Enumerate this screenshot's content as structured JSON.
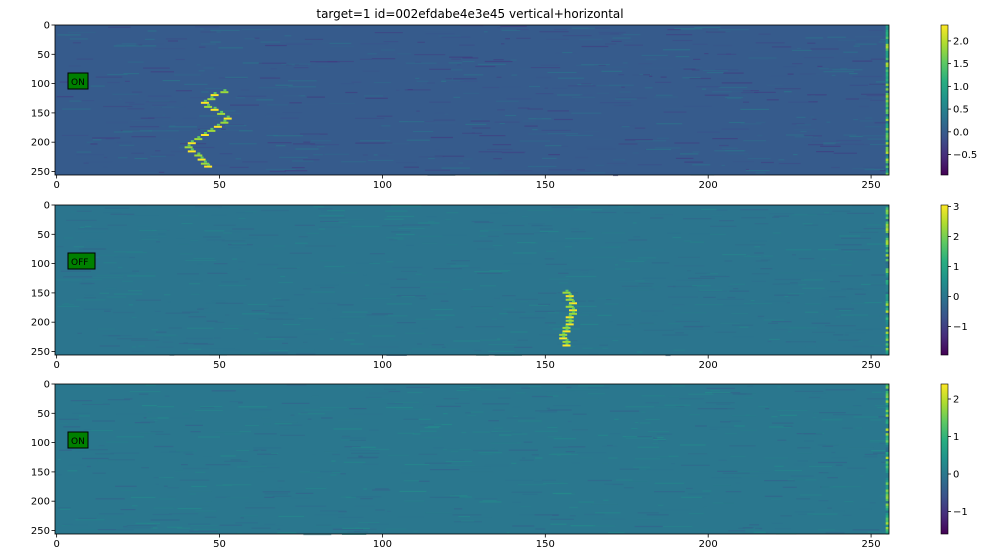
{
  "title": "target=1  id=002efdabe4e3e45 vertical+horizontal",
  "chart_data": [
    {
      "type": "heatmap",
      "colormap": "viridis",
      "label": "ON",
      "label_color": "#008000",
      "xlim": [
        0,
        256
      ],
      "ylim": [
        256,
        0
      ],
      "x_ticks": [
        0,
        50,
        100,
        150,
        200,
        250
      ],
      "y_ticks": [
        0,
        50,
        100,
        150,
        200,
        250
      ],
      "background_value": 0.0,
      "color_range": [
        -0.95,
        2.35
      ],
      "colorbar_ticks": [
        "2.0",
        "1.5",
        "1.0",
        "0.5",
        "0.0",
        "−0.5"
      ],
      "colorbar_tick_values": [
        2.0,
        1.5,
        1.0,
        0.5,
        0.0,
        -0.5
      ],
      "signal_trace": [
        [
          52,
          113
        ],
        [
          49,
          118
        ],
        [
          48,
          125
        ],
        [
          46,
          131
        ],
        [
          47,
          138
        ],
        [
          49,
          143
        ],
        [
          51,
          150
        ],
        [
          53,
          158
        ],
        [
          52,
          165
        ],
        [
          50,
          172
        ],
        [
          48,
          179
        ],
        [
          46,
          186
        ],
        [
          44,
          193
        ],
        [
          42,
          200
        ],
        [
          41,
          207
        ],
        [
          42,
          214
        ],
        [
          44,
          221
        ],
        [
          45,
          228
        ],
        [
          46,
          235
        ],
        [
          47,
          240
        ]
      ],
      "bright_edge_column": 255
    },
    {
      "type": "heatmap",
      "colormap": "viridis",
      "label": "OFF",
      "label_color": "#008000",
      "xlim": [
        0,
        256
      ],
      "ylim": [
        256,
        0
      ],
      "x_ticks": [
        0,
        50,
        100,
        150,
        200,
        250
      ],
      "y_ticks": [
        0,
        50,
        100,
        150,
        200,
        250
      ],
      "background_value": 0.0,
      "color_range": [
        -1.95,
        3.05
      ],
      "colorbar_ticks": [
        "3",
        "2",
        "1",
        "0",
        "−1"
      ],
      "colorbar_tick_values": [
        3,
        2,
        1,
        0,
        -1
      ],
      "signal_trace": [
        [
          157,
          148
        ],
        [
          158,
          154
        ],
        [
          158,
          160
        ],
        [
          159,
          166
        ],
        [
          158,
          172
        ],
        [
          159,
          178
        ],
        [
          159,
          184
        ],
        [
          158,
          190
        ],
        [
          158,
          196
        ],
        [
          158,
          202
        ],
        [
          157,
          208
        ],
        [
          157,
          214
        ],
        [
          156,
          220
        ],
        [
          156,
          226
        ],
        [
          157,
          232
        ],
        [
          157,
          238
        ]
      ],
      "bright_edge_column": 255
    },
    {
      "type": "heatmap",
      "colormap": "viridis",
      "label": "ON",
      "label_color": "#008000",
      "xlim": [
        0,
        256
      ],
      "ylim": [
        256,
        0
      ],
      "x_ticks": [
        0,
        50,
        100,
        150,
        200,
        250
      ],
      "y_ticks": [
        0,
        50,
        100,
        150,
        200,
        250
      ],
      "background_value": 0.0,
      "color_range": [
        -1.6,
        2.4
      ],
      "colorbar_ticks": [
        "2",
        "1",
        "0",
        "−1"
      ],
      "colorbar_tick_values": [
        2,
        1,
        0,
        -1
      ],
      "signal_trace": [],
      "bright_edge_column": 255
    }
  ]
}
